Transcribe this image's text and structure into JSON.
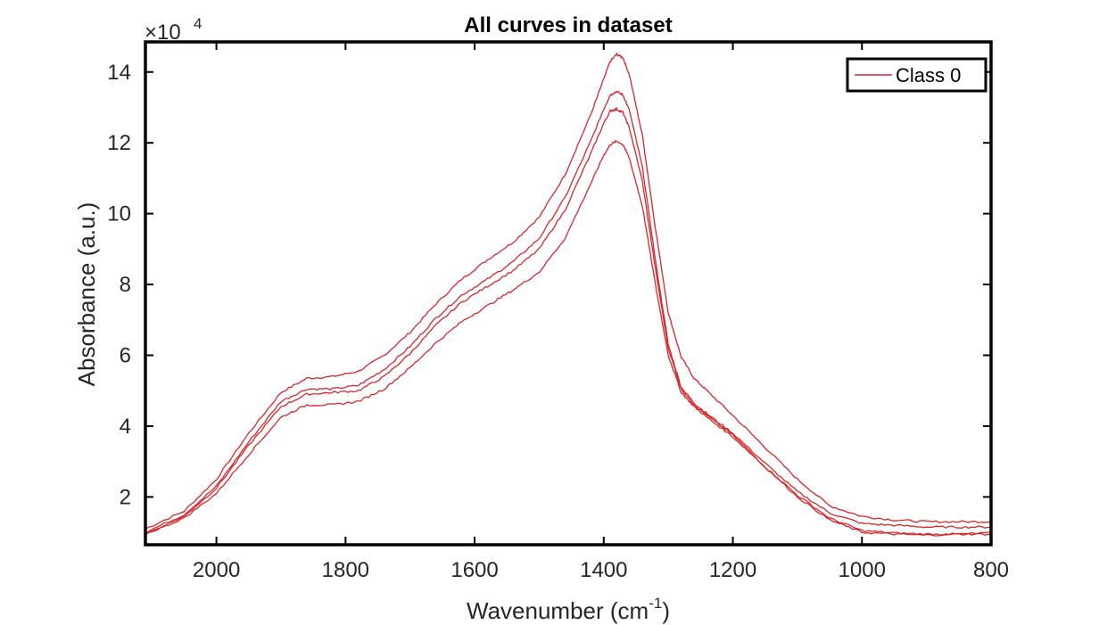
{
  "chart_data": {
    "type": "line",
    "title": "All curves in dataset",
    "xlabel_base": "Wavenumber (cm",
    "xlabel_sup": "-1",
    "xlabel_end": ")",
    "ylabel": "Absorbance (a.u.)",
    "y_exponent_base": "×10",
    "y_exponent_power": "4",
    "x_reversed": true,
    "xlim": [
      2110,
      800
    ],
    "ylim": [
      0.65,
      14.85
    ],
    "x_ticks": [
      2000,
      1800,
      1600,
      1400,
      1200,
      1000,
      800
    ],
    "y_ticks": [
      2,
      4,
      6,
      8,
      10,
      12,
      14
    ],
    "grid": false,
    "legend": {
      "entries": [
        "Class 0"
      ],
      "placement": "top-right"
    },
    "line_color": "#d7262b",
    "series": [
      {
        "name": "Class 0",
        "x": [
          2110,
          2050,
          2000,
          1950,
          1900,
          1860,
          1820,
          1780,
          1740,
          1700,
          1660,
          1620,
          1580,
          1540,
          1500,
          1460,
          1420,
          1400,
          1390,
          1380,
          1370,
          1360,
          1340,
          1320,
          1300,
          1280,
          1260,
          1240,
          1200,
          1150,
          1100,
          1050,
          1000,
          950,
          900,
          850,
          800
        ],
        "values": [
          1.1,
          1.6,
          2.5,
          3.8,
          4.95,
          5.35,
          5.4,
          5.55,
          6.0,
          6.65,
          7.45,
          8.15,
          8.7,
          9.2,
          9.9,
          11.1,
          12.8,
          13.8,
          14.3,
          14.5,
          14.4,
          13.9,
          12.2,
          9.6,
          7.2,
          5.95,
          5.35,
          5.0,
          4.3,
          3.4,
          2.5,
          1.75,
          1.45,
          1.35,
          1.3,
          1.3,
          1.3
        ]
      },
      {
        "name": "",
        "x": [
          2110,
          2050,
          2000,
          1950,
          1900,
          1860,
          1820,
          1780,
          1740,
          1700,
          1660,
          1620,
          1580,
          1540,
          1500,
          1460,
          1420,
          1400,
          1390,
          1380,
          1370,
          1360,
          1340,
          1320,
          1300,
          1280,
          1260,
          1240,
          1200,
          1150,
          1100,
          1050,
          1000,
          950,
          900,
          850,
          800
        ],
        "values": [
          1.0,
          1.5,
          2.3,
          3.55,
          4.7,
          5.05,
          5.05,
          5.15,
          5.6,
          6.25,
          7.05,
          7.7,
          8.15,
          8.65,
          9.3,
          10.45,
          12.05,
          12.95,
          13.35,
          13.45,
          13.35,
          12.9,
          11.3,
          8.7,
          6.3,
          5.1,
          4.65,
          4.35,
          3.8,
          2.95,
          2.15,
          1.55,
          1.25,
          1.2,
          1.15,
          1.15,
          1.15
        ]
      },
      {
        "name": "",
        "x": [
          2110,
          2050,
          2000,
          1950,
          1900,
          1860,
          1820,
          1780,
          1740,
          1700,
          1660,
          1620,
          1580,
          1540,
          1500,
          1460,
          1420,
          1400,
          1390,
          1380,
          1370,
          1360,
          1340,
          1320,
          1300,
          1280,
          1260,
          1240,
          1200,
          1150,
          1100,
          1050,
          1000,
          950,
          900,
          850,
          800
        ],
        "values": [
          0.95,
          1.45,
          2.25,
          3.45,
          4.55,
          4.9,
          4.95,
          5.0,
          5.4,
          6.05,
          6.85,
          7.5,
          7.95,
          8.4,
          9.0,
          10.1,
          11.7,
          12.55,
          12.9,
          12.95,
          12.85,
          12.4,
          10.9,
          8.45,
          6.2,
          5.05,
          4.6,
          4.3,
          3.75,
          2.85,
          2.05,
          1.4,
          1.05,
          0.98,
          0.95,
          0.95,
          0.98
        ]
      },
      {
        "name": "",
        "x": [
          2110,
          2050,
          2000,
          1950,
          1900,
          1860,
          1820,
          1780,
          1740,
          1700,
          1660,
          1620,
          1580,
          1540,
          1500,
          1460,
          1420,
          1400,
          1390,
          1380,
          1370,
          1360,
          1340,
          1320,
          1300,
          1280,
          1260,
          1240,
          1200,
          1150,
          1100,
          1050,
          1000,
          950,
          900,
          850,
          800
        ],
        "values": [
          0.95,
          1.4,
          2.1,
          3.2,
          4.25,
          4.6,
          4.6,
          4.7,
          5.05,
          5.65,
          6.35,
          6.95,
          7.4,
          7.85,
          8.35,
          9.3,
          10.85,
          11.65,
          11.95,
          12.05,
          11.95,
          11.55,
          10.2,
          8.0,
          6.0,
          4.95,
          4.55,
          4.25,
          3.7,
          2.85,
          2.0,
          1.35,
          1.0,
          0.95,
          0.92,
          0.95,
          0.95
        ]
      }
    ]
  }
}
